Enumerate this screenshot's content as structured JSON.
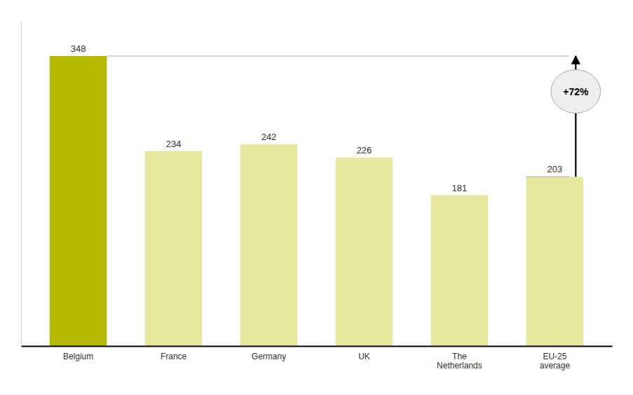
{
  "chart_data": {
    "type": "bar",
    "categories": [
      "Belgium",
      "France",
      "Germany",
      "UK",
      "The\nNetherlands",
      "EU-25\naverage"
    ],
    "values": [
      348,
      234,
      242,
      226,
      181,
      203
    ],
    "colors": [
      "#b5b800",
      "#e8e8a0",
      "#e8e8a0",
      "#e8e8a0",
      "#e8e8a0",
      "#e8e8a0"
    ],
    "ylim": [
      0,
      390
    ],
    "data_labels": true,
    "tick_labels": "x",
    "grid": false,
    "annotation": {
      "text": "+72%",
      "from": 203,
      "to": 348
    }
  }
}
